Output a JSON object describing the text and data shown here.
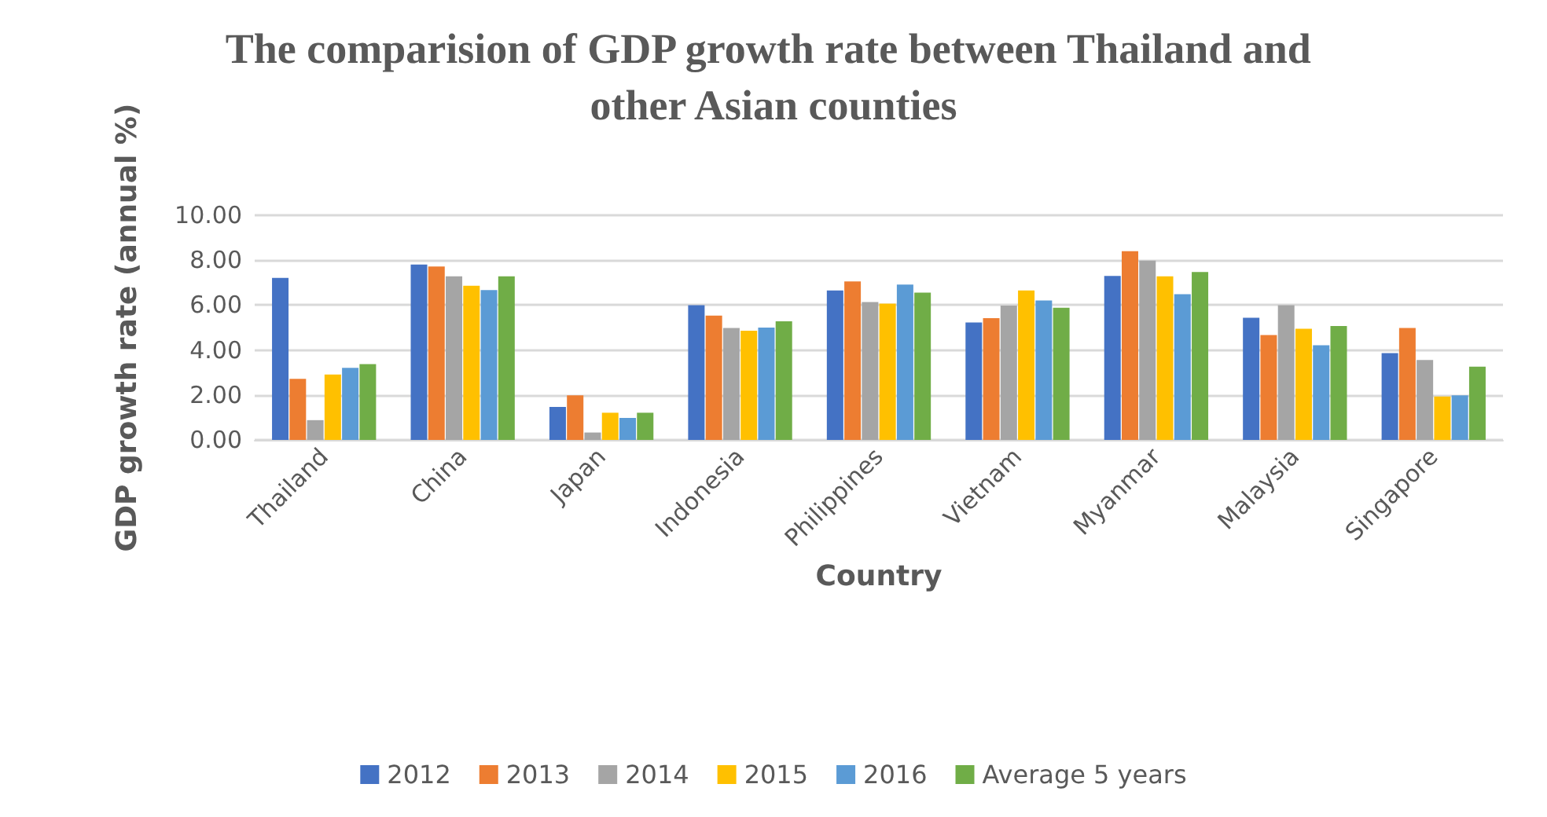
{
  "chart_data": {
    "type": "bar",
    "title": "The comparision of GDP growth rate between Thailand and other Asian counties",
    "xlabel": "Country",
    "ylabel": "GDP growth rate (annual %)",
    "categories": [
      "Thailand",
      "China",
      "Japan",
      "Indonesia",
      "Philippines",
      "Vietnam",
      "Myanmar",
      "Malaysia",
      "Singapore"
    ],
    "series": [
      {
        "name": "2012",
        "color": "#4472c4",
        "values": [
          7.21,
          7.81,
          1.47,
          6.0,
          6.65,
          5.23,
          7.3,
          5.44,
          3.86
        ]
      },
      {
        "name": "2013",
        "color": "#ed7d31",
        "values": [
          2.72,
          7.72,
          1.98,
          5.53,
          7.05,
          5.42,
          8.4,
          4.67,
          4.98
        ]
      },
      {
        "name": "2014",
        "color": "#a5a5a5",
        "values": [
          0.88,
          7.28,
          0.33,
          4.98,
          6.14,
          5.98,
          7.98,
          6.0,
          3.56
        ]
      },
      {
        "name": "2015",
        "color": "#ffc000",
        "values": [
          2.91,
          6.86,
          1.21,
          4.86,
          6.07,
          6.65,
          7.28,
          4.95,
          1.93
        ]
      },
      {
        "name": "2016",
        "color": "#5b9bd5",
        "values": [
          3.21,
          6.67,
          0.98,
          5.0,
          6.91,
          6.21,
          6.49,
          4.21,
          1.98
        ]
      },
      {
        "name": "Average 5 years",
        "color": "#70ad47",
        "values": [
          3.37,
          7.28,
          1.21,
          5.28,
          6.56,
          5.88,
          7.47,
          5.07,
          3.26
        ]
      }
    ],
    "ylim": [
      0,
      10
    ],
    "yticks": [
      {
        "value": 0,
        "label": "0.00"
      },
      {
        "value": 2,
        "label": "2.00"
      },
      {
        "value": 4,
        "label": "4.00"
      },
      {
        "value": 6,
        "label": "6.00"
      },
      {
        "value": 8,
        "label": "8.00"
      },
      {
        "value": 10,
        "label": "10.00"
      }
    ],
    "grid": "y",
    "legend": "bottom"
  }
}
